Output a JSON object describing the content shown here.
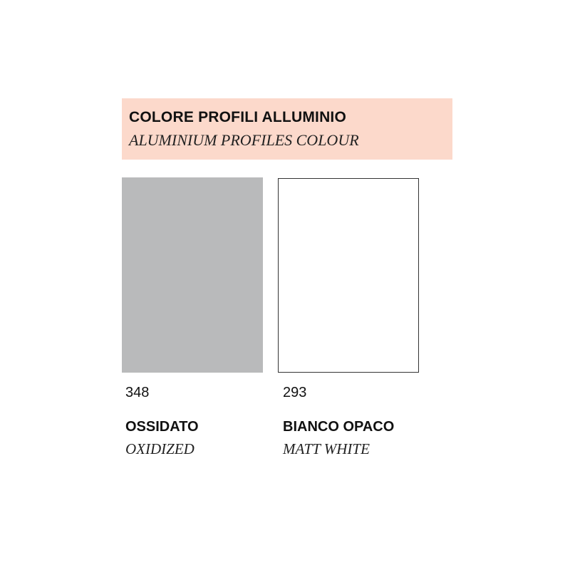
{
  "header": {
    "title": "COLORE PROFILI ALLUMINIO",
    "subtitle": "ALUMINIUM PROFILES COLOUR",
    "background_color": "#fcd9cb"
  },
  "swatches": [
    {
      "code": "348",
      "name": "OSSIDATO",
      "name_en": "OXIDIZED",
      "color": "#b9babb"
    },
    {
      "code": "293",
      "name": "BIANCO OPACO",
      "name_en": "MATT WHITE",
      "color": "#ffffff"
    }
  ]
}
